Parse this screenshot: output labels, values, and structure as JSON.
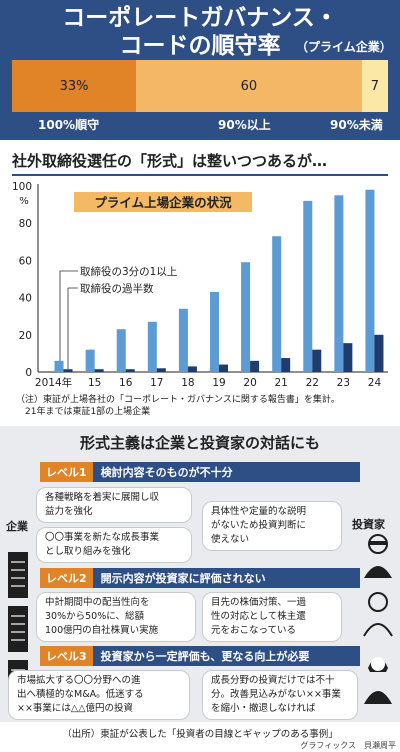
{
  "header": {
    "title": "コーポレートガバナンス・\nコードの順守率",
    "subtitle": "（プライム企業）",
    "compliance": [
      {
        "value": 33,
        "label": "33%",
        "caption": "100%順守",
        "color": "#e08427"
      },
      {
        "value": 60,
        "label": "60",
        "caption": "90%以上",
        "color": "#f3b765"
      },
      {
        "value": 7,
        "label": "7",
        "caption": "90%未満",
        "color": "#fbe8a6"
      }
    ]
  },
  "chart_section": {
    "title": "社外取締役選任の「形式」は整いつつあるが…",
    "note": "（注）東証が上場各社の「コーポレート・ガバナンスに関する報告書」を集計。\n　21年までは東証1部の上場企業"
  },
  "chart_data": {
    "type": "bar",
    "title": "プライム上場企業の状況",
    "ylabel": "%",
    "ylim": [
      0,
      100
    ],
    "yticks": [
      0,
      20,
      40,
      60,
      80,
      100
    ],
    "categories": [
      "2014年",
      "15",
      "16",
      "17",
      "18",
      "19",
      "20",
      "21",
      "22",
      "23",
      "24"
    ],
    "series": [
      {
        "name": "取締役の3分の1以上",
        "color": "#5c9bd3",
        "values": [
          6,
          12,
          23,
          27,
          34,
          43,
          59,
          73,
          92,
          95,
          98
        ]
      },
      {
        "name": "取締役の過半数",
        "color": "#1e3c6e",
        "values": [
          1.5,
          1.5,
          1.5,
          2,
          3,
          4,
          6,
          7.5,
          12,
          15.5,
          20
        ]
      }
    ],
    "grid": false,
    "legend": "left"
  },
  "dialogue": {
    "title": "形式主義は企業と投資家の対話にも",
    "company_label": "企業",
    "investor_label": "投資家",
    "levels": [
      {
        "tag": "レベル1",
        "text": "検討内容そのものが不十分",
        "company": [
          "各種戦略を着実に展開し収\n益力を強化",
          "〇〇事業を新たな成長事業\nとし取り組みを強化"
        ],
        "investor": "具体性や定量的な説明\nがないため投資判断に\n使えない"
      },
      {
        "tag": "レベル2",
        "text": "開示内容が投資家に評価されない",
        "company": [
          "中計期間中の配当性向を\n30%から50%に、総額\n100億円の自社株買い実施"
        ],
        "investor": "目先の株価対策、一過\n性の対応として株主還\n元をおこなっている"
      },
      {
        "tag": "レベル3",
        "text": "投資家から一定評価も、更なる向上が必要",
        "company": [
          "市場拡大する〇〇分野への進\n出へ積極的なM&A。低迷する\n××事業には△△億円の投資"
        ],
        "investor": "成長分野の投資だけでは不十\n分。改善見込みがない××事業\nを縮小・撤退しなければ"
      }
    ]
  },
  "source": "（出所）東証が公表した「投資者の目線とギャップのある事例」",
  "credit": "グラフィックス　貝瀬周平"
}
